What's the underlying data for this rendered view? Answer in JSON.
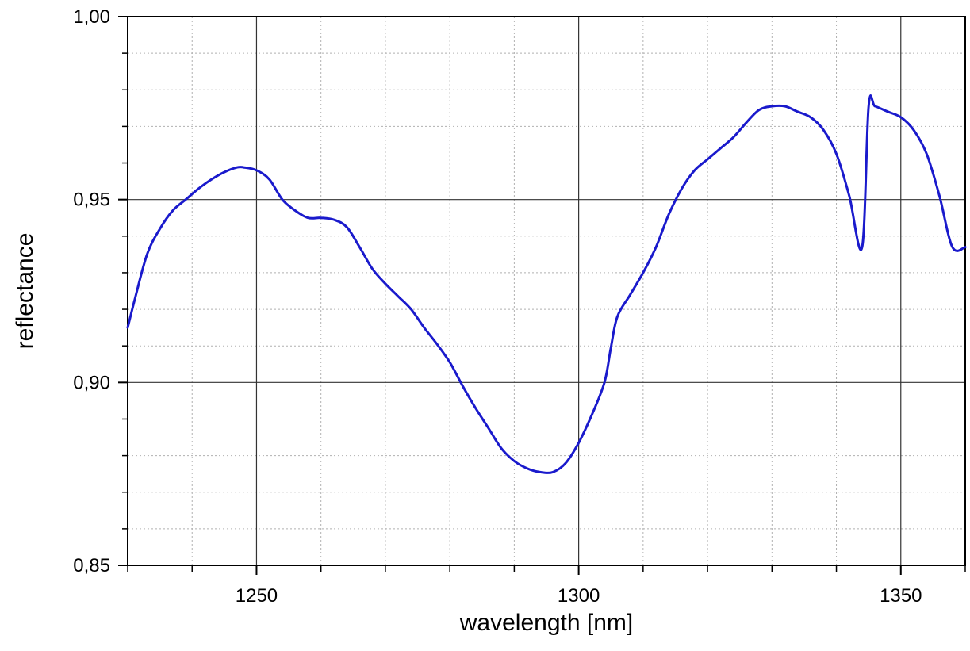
{
  "chart_data": {
    "type": "line",
    "title": "",
    "xlabel": "wavelength [nm]",
    "ylabel": "reflectance",
    "xlim": [
      1230,
      1360
    ],
    "ylim": [
      0.85,
      1.0
    ],
    "x_major_ticks": [
      1250,
      1300,
      1350
    ],
    "x_tick_labels": [
      "1250",
      "1300",
      "1350"
    ],
    "x_minor_step": 10,
    "y_major_ticks": [
      0.85,
      0.9,
      0.95,
      1.0
    ],
    "y_tick_labels": [
      "0,85",
      "0,90",
      "0,95",
      "1,00"
    ],
    "y_minor_step": 0.01,
    "grid": true,
    "legend": "none",
    "line_color": "#1a1acc",
    "series": [
      {
        "x": [
          1230,
          1231,
          1233,
          1235,
          1237,
          1239,
          1241,
          1243,
          1245,
          1247,
          1248,
          1250,
          1252,
          1254,
          1256,
          1258,
          1260,
          1262,
          1264,
          1266,
          1268,
          1270,
          1272,
          1274,
          1276,
          1278,
          1280,
          1282,
          1284,
          1286,
          1288,
          1290,
          1292,
          1294,
          1296,
          1298,
          1300,
          1302,
          1304,
          1305,
          1306,
          1308,
          1310,
          1312,
          1314,
          1316,
          1318,
          1320,
          1322,
          1324,
          1326,
          1328,
          1330,
          1332,
          1334,
          1336,
          1338,
          1340,
          1342,
          1344,
          1345,
          1346,
          1348,
          1350,
          1352,
          1354,
          1356,
          1358,
          1360
        ],
        "y": [
          0.915,
          0.922,
          0.935,
          0.942,
          0.947,
          0.95,
          0.953,
          0.9555,
          0.9575,
          0.9588,
          0.9588,
          0.958,
          0.9555,
          0.95,
          0.947,
          0.945,
          0.945,
          0.9445,
          0.9425,
          0.937,
          0.931,
          0.927,
          0.9235,
          0.92,
          0.915,
          0.9105,
          0.9055,
          0.899,
          0.893,
          0.8875,
          0.882,
          0.8785,
          0.8765,
          0.8755,
          0.8755,
          0.878,
          0.8835,
          0.891,
          0.9,
          0.9095,
          0.918,
          0.924,
          0.93,
          0.937,
          0.946,
          0.953,
          0.958,
          0.961,
          0.964,
          0.967,
          0.971,
          0.9745,
          0.9755,
          0.9755,
          0.974,
          0.9725,
          0.969,
          0.9625,
          0.951,
          0.937,
          0.9755,
          0.9755,
          0.974,
          0.9725,
          0.969,
          0.9625,
          0.951,
          0.937,
          0.937
        ]
      }
    ]
  }
}
